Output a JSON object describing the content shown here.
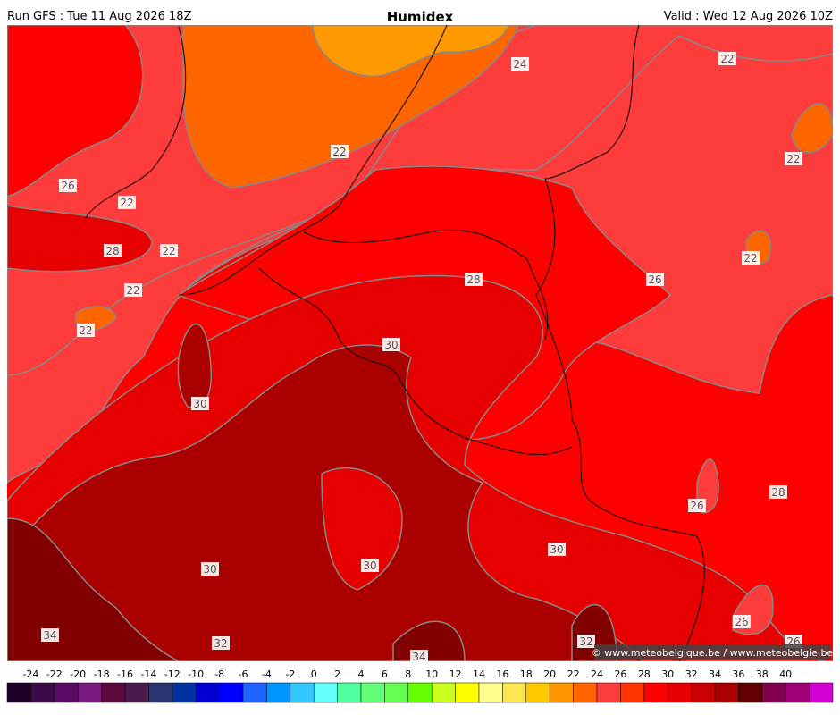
{
  "header": {
    "left": "Run GFS : Tue 11 Aug 2026 18Z",
    "title": "Humidex",
    "right": "Valid : Wed 12 Aug 2026 10Z"
  },
  "contour_labels": [
    24,
    22,
    22,
    22,
    26,
    22,
    28,
    22,
    22,
    22,
    28,
    26,
    22,
    30,
    30,
    28,
    26,
    30,
    30,
    30,
    34,
    32,
    32,
    26,
    26,
    34
  ],
  "credit": "© www.meteobelgique.be / www.meteobelgie.be",
  "colorbar": {
    "ticks": [
      -24,
      -22,
      -20,
      -18,
      -16,
      -14,
      -12,
      -10,
      -8,
      -6,
      -4,
      -2,
      0,
      2,
      4,
      6,
      8,
      10,
      12,
      14,
      16,
      18,
      20,
      22,
      24,
      26,
      28,
      30,
      32,
      34,
      36,
      38,
      40
    ],
    "colors": [
      "#1e0026",
      "#3c0a46",
      "#5a0a64",
      "#7a1a82",
      "#5a0a3c",
      "#4a1a4a",
      "#2c3470",
      "#0032a0",
      "#0000d2",
      "#0000ff",
      "#1e64ff",
      "#0096ff",
      "#32c8ff",
      "#64ffff",
      "#50ffa0",
      "#64ff78",
      "#64ff50",
      "#64ff00",
      "#c8ff1e",
      "#ffff00",
      "#ffff8c",
      "#ffe650",
      "#ffc800",
      "#ff9600",
      "#ff6400",
      "#ff3c3c",
      "#ff3200",
      "#ff0000",
      "#e60000",
      "#c80000",
      "#aa0000",
      "#640000",
      "#820050",
      "#a00078",
      "#d200d2"
    ]
  }
}
